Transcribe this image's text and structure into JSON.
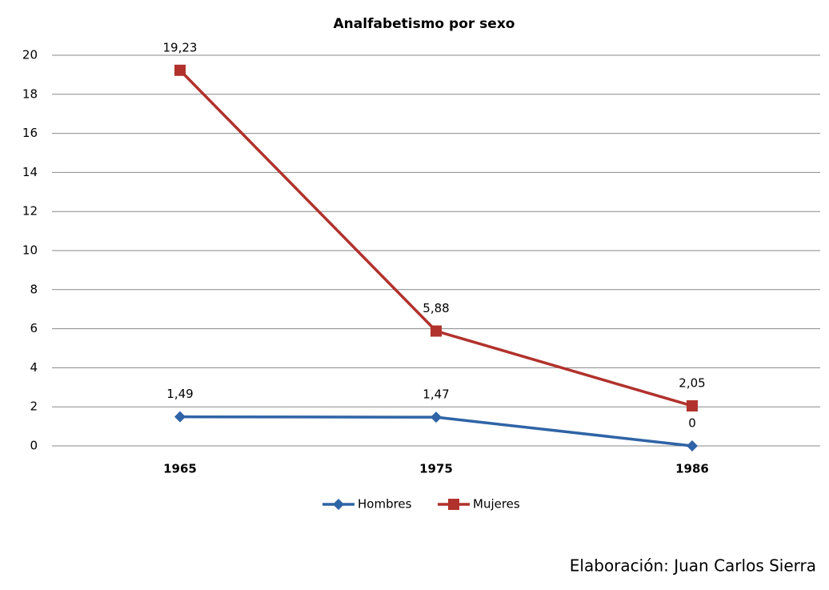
{
  "chart_data": {
    "type": "line",
    "title": "Analfabetismo por sexo",
    "categories": [
      "1965",
      "1975",
      "1986"
    ],
    "series": [
      {
        "name": "Hombres",
        "color": "#2f64a6",
        "marker": "diamond",
        "values": [
          1.49,
          1.47,
          0
        ],
        "value_labels": [
          "1,49",
          "1,47",
          "0"
        ]
      },
      {
        "name": "Mujeres",
        "color": "#b1312c",
        "marker": "square",
        "values": [
          19.23,
          5.88,
          2.05
        ],
        "value_labels": [
          "19,23",
          "5,88",
          "2,05"
        ]
      }
    ],
    "ylim": [
      0,
      20
    ],
    "yticks": [
      0,
      2,
      4,
      6,
      8,
      10,
      12,
      14,
      16,
      18,
      20
    ],
    "grid": true,
    "legend": "bottom",
    "note": "Elaboración: Juan Carlos Sierra"
  }
}
